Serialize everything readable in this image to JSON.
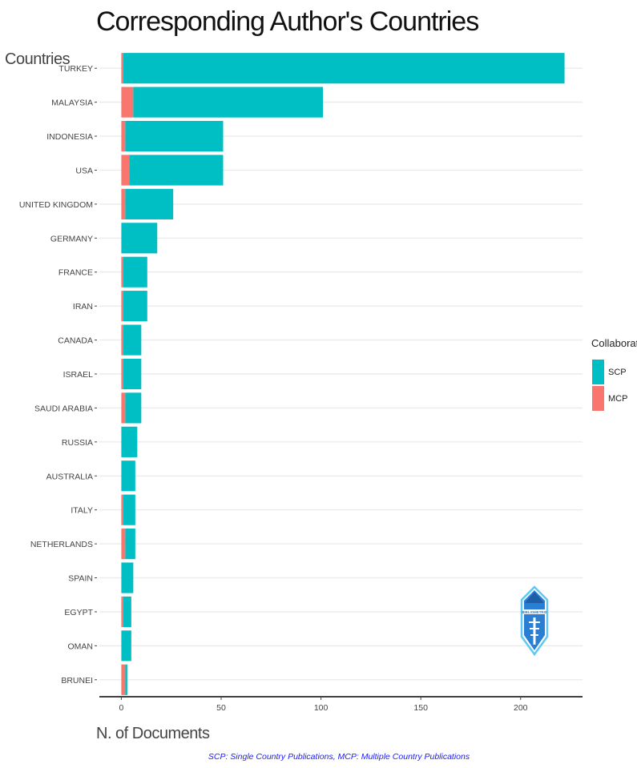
{
  "chart_data": {
    "type": "bar",
    "orientation": "horizontal",
    "stacked": true,
    "title": "Corresponding Author's Countries",
    "ylabel": "Countries",
    "xlabel": "N. of Documents",
    "categories": [
      "TURKEY",
      "MALAYSIA",
      "INDONESIA",
      "USA",
      "UNITED KINGDOM",
      "GERMANY",
      "FRANCE",
      "IRAN",
      "CANADA",
      "ISRAEL",
      "SAUDI ARABIA",
      "RUSSIA",
      "AUSTRALIA",
      "ITALY",
      "NETHERLANDS",
      "SPAIN",
      "EGYPT",
      "OMAN",
      "BRUNEI"
    ],
    "series": [
      {
        "name": "MCP",
        "color": "#f8766d",
        "values": [
          1,
          6,
          2,
          4,
          2,
          0,
          1,
          1,
          1,
          1,
          2,
          0,
          0,
          1,
          2,
          0,
          1,
          0,
          2
        ]
      },
      {
        "name": "SCP",
        "color": "#00bfc4",
        "values": [
          221,
          95,
          49,
          47,
          24,
          18,
          12,
          12,
          9,
          9,
          8,
          8,
          7,
          6,
          5,
          6,
          4,
          5,
          1
        ]
      }
    ],
    "xticks": [
      0,
      50,
      100,
      150,
      200
    ],
    "xlim": [
      -11,
      231
    ],
    "legend": {
      "title": "Collaboration",
      "position": "right",
      "entries": [
        {
          "label": "SCP",
          "color": "#00bfc4"
        },
        {
          "label": "MCP",
          "color": "#f8766d"
        }
      ]
    },
    "caption": "SCP: Single Country Publications, MCP: Multiple Country Publications",
    "grid": "horizontal-major"
  },
  "watermark": {
    "text": "BIBLIOMETRIX",
    "icon": "bibliometrix-logo-icon",
    "color": "#2a7fd4"
  }
}
